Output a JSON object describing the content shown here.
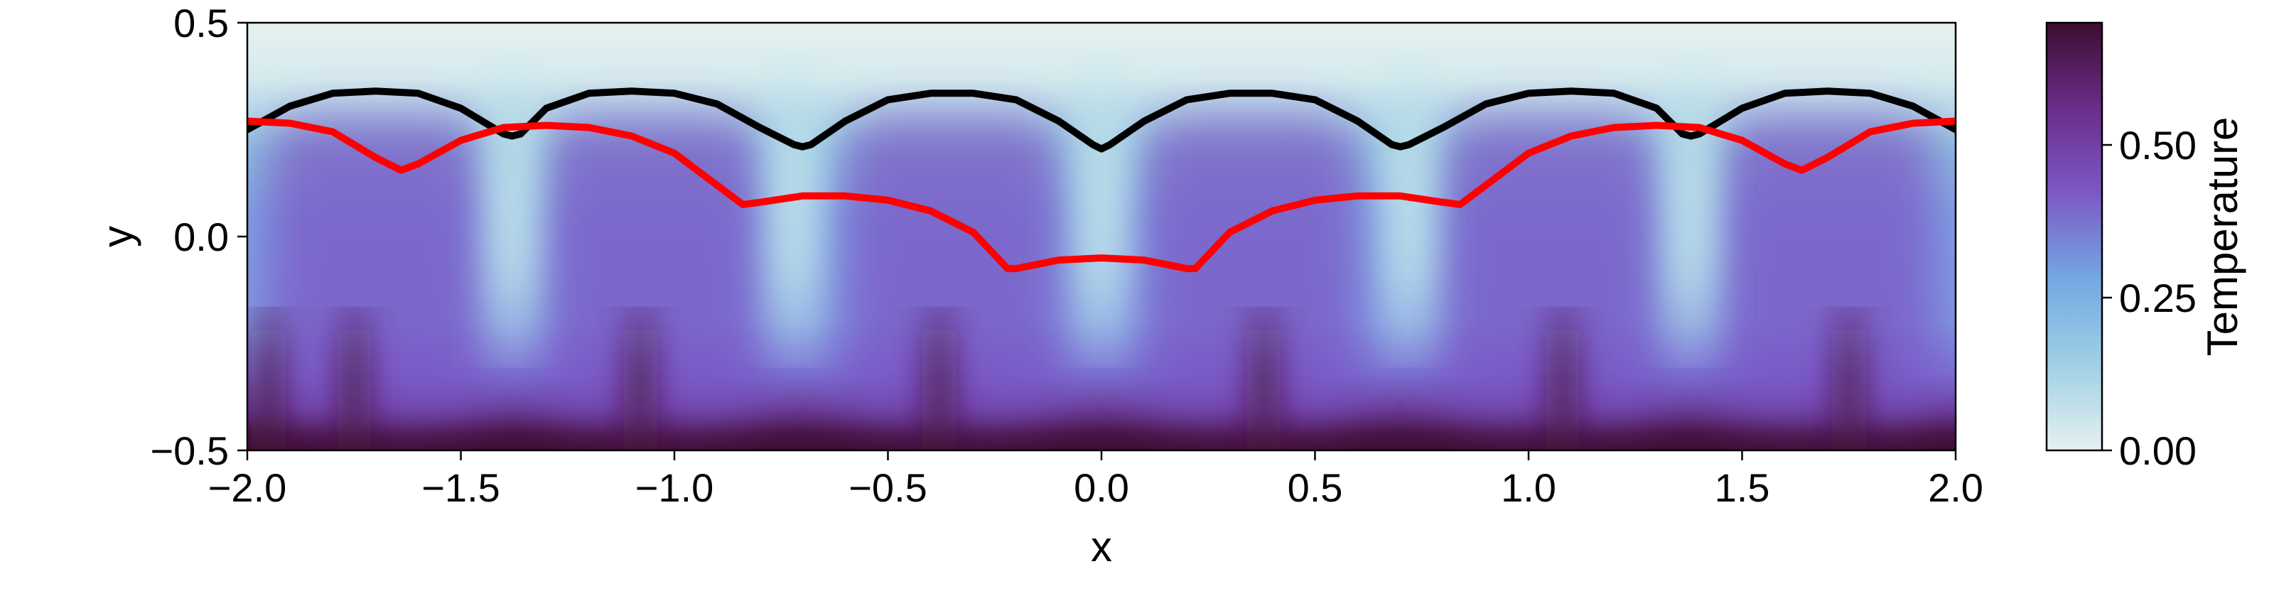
{
  "chart_data": {
    "type": "heatmap",
    "title": "",
    "xlabel": "x",
    "ylabel": "y",
    "xlim": [
      -2.0,
      2.0
    ],
    "ylim": [
      -0.5,
      0.5
    ],
    "x_ticks": [
      "−2.0",
      "−1.5",
      "−1.0",
      "−0.5",
      "0.0",
      "0.5",
      "1.0",
      "1.5",
      "2.0"
    ],
    "x_tick_values": [
      -2.0,
      -1.5,
      -1.0,
      -0.5,
      0.0,
      0.5,
      1.0,
      1.5,
      2.0
    ],
    "y_ticks": [
      "−0.5",
      "0.0",
      "0.5"
    ],
    "y_tick_values": [
      -0.5,
      0.0,
      0.5
    ],
    "colorbar": {
      "label": "Temperature",
      "range": [
        0.0,
        0.7
      ],
      "ticks": [
        "0.00",
        "0.25",
        "0.50"
      ],
      "tick_values": [
        0.0,
        0.25,
        0.5
      ],
      "colormap": [
        "#e6f1f0",
        "#9fd0e4",
        "#74a8e3",
        "#7b5ac4",
        "#6b2c8a",
        "#3d0d2f"
      ]
    },
    "field": {
      "description_of_values": "temperature field",
      "hot_columns_x": [
        -1.95,
        -1.75,
        -1.08,
        -0.38,
        0.38,
        1.08,
        1.75
      ],
      "cold_columns_x": [
        -1.38,
        -0.72,
        0.0,
        0.72,
        1.38
      ],
      "bottom_hot_value": 0.65,
      "top_value": 0.0
    },
    "series": [
      {
        "color": "#000000",
        "x": [
          -2.0,
          -1.9,
          -1.8,
          -1.7,
          -1.6,
          -1.5,
          -1.4,
          -1.38,
          -1.36,
          -1.3,
          -1.2,
          -1.1,
          -1.0,
          -0.9,
          -0.8,
          -0.72,
          -0.7,
          -0.68,
          -0.6,
          -0.5,
          -0.4,
          -0.3,
          -0.2,
          -0.1,
          -0.02,
          0.0,
          0.02,
          0.1,
          0.2,
          0.3,
          0.4,
          0.5,
          0.6,
          0.68,
          0.7,
          0.72,
          0.8,
          0.9,
          1.0,
          1.1,
          1.2,
          1.3,
          1.36,
          1.38,
          1.4,
          1.5,
          1.6,
          1.7,
          1.8,
          1.9,
          2.0
        ],
        "y": [
          0.25,
          0.305,
          0.335,
          0.34,
          0.335,
          0.3,
          0.24,
          0.235,
          0.24,
          0.3,
          0.335,
          0.34,
          0.335,
          0.31,
          0.255,
          0.215,
          0.21,
          0.215,
          0.27,
          0.32,
          0.335,
          0.335,
          0.32,
          0.27,
          0.215,
          0.205,
          0.215,
          0.27,
          0.32,
          0.335,
          0.335,
          0.32,
          0.27,
          0.215,
          0.21,
          0.215,
          0.255,
          0.31,
          0.335,
          0.34,
          0.335,
          0.3,
          0.24,
          0.235,
          0.24,
          0.3,
          0.335,
          0.34,
          0.335,
          0.305,
          0.25
        ]
      },
      {
        "color": "#ff0000",
        "x": [
          -2.0,
          -1.9,
          -1.8,
          -1.7,
          -1.64,
          -1.6,
          -1.5,
          -1.4,
          -1.3,
          -1.2,
          -1.1,
          -1.0,
          -0.9,
          -0.84,
          -0.8,
          -0.7,
          -0.6,
          -0.5,
          -0.4,
          -0.3,
          -0.22,
          -0.2,
          -0.1,
          0.0,
          0.1,
          0.2,
          0.22,
          0.3,
          0.4,
          0.5,
          0.6,
          0.7,
          0.8,
          0.84,
          0.9,
          1.0,
          1.1,
          1.2,
          1.3,
          1.4,
          1.5,
          1.6,
          1.64,
          1.7,
          1.8,
          1.9,
          2.0
        ],
        "y": [
          0.27,
          0.265,
          0.245,
          0.185,
          0.155,
          0.17,
          0.225,
          0.255,
          0.26,
          0.255,
          0.235,
          0.195,
          0.12,
          0.075,
          0.08,
          0.095,
          0.095,
          0.085,
          0.06,
          0.01,
          -0.075,
          -0.075,
          -0.055,
          -0.05,
          -0.055,
          -0.075,
          -0.075,
          0.01,
          0.06,
          0.085,
          0.095,
          0.095,
          0.08,
          0.075,
          0.12,
          0.195,
          0.235,
          0.255,
          0.26,
          0.255,
          0.225,
          0.17,
          0.155,
          0.185,
          0.245,
          0.265,
          0.27
        ]
      }
    ]
  }
}
